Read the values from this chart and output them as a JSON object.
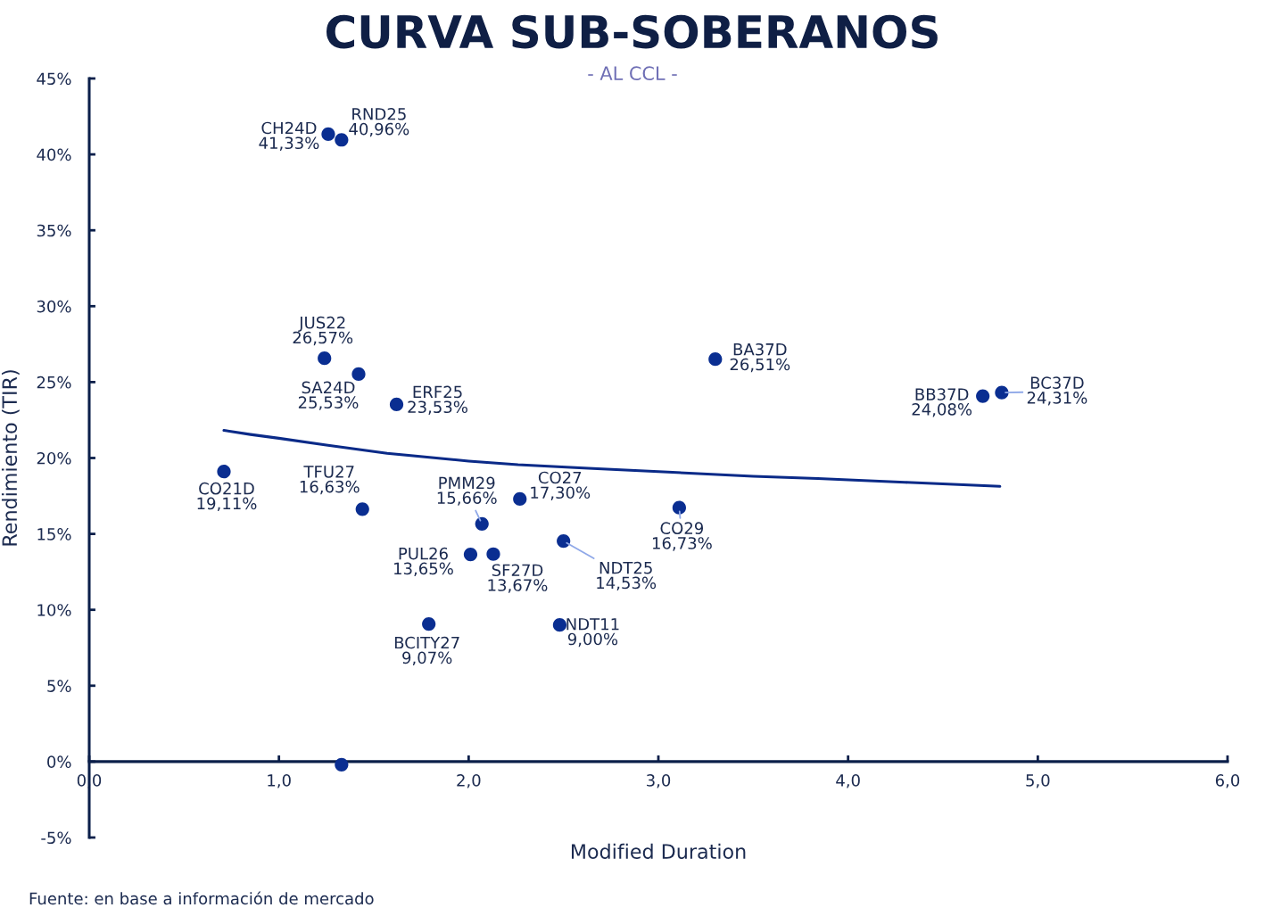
{
  "chart_data": {
    "type": "scatter",
    "title": "CURVA SUB-SOBERANOS",
    "subtitle": "- AL CCL -",
    "xlabel": "Modified Duration",
    "ylabel": "Rendimiento (TIR)",
    "annotations": [
      "Fuente: en base a información de mercado"
    ],
    "xlim": [
      0,
      6
    ],
    "ylim": [
      -5,
      45
    ],
    "xticks": [
      {
        "value": 0,
        "label": "0,0"
      },
      {
        "value": 1,
        "label": "1,0"
      },
      {
        "value": 2,
        "label": "2,0"
      },
      {
        "value": 3,
        "label": "3,0"
      },
      {
        "value": 4,
        "label": "4,0"
      },
      {
        "value": 5,
        "label": "5,0"
      },
      {
        "value": 6,
        "label": "6,0"
      }
    ],
    "yticks": [
      {
        "value": -5,
        "label": "-5%"
      },
      {
        "value": 0,
        "label": "0%"
      },
      {
        "value": 5,
        "label": "5%"
      },
      {
        "value": 10,
        "label": "10%"
      },
      {
        "value": 15,
        "label": "15%"
      },
      {
        "value": 20,
        "label": "20%"
      },
      {
        "value": 25,
        "label": "25%"
      },
      {
        "value": 30,
        "label": "30%"
      },
      {
        "value": 35,
        "label": "35%"
      },
      {
        "value": 40,
        "label": "40%"
      },
      {
        "value": 45,
        "label": "45%"
      }
    ],
    "grid": false,
    "series": [
      {
        "color": "#0a2e91",
        "marker": "circle",
        "x": [
          1.26,
          1.33,
          1.24,
          1.42,
          1.62,
          0.71,
          1.44,
          2.07,
          2.27,
          2.01,
          2.13,
          2.5,
          3.11,
          1.79,
          2.48,
          3.3,
          4.71,
          4.81,
          1.33
        ],
        "values": [
          41.33,
          40.96,
          26.57,
          25.53,
          23.53,
          19.11,
          16.63,
          15.66,
          17.3,
          13.65,
          13.67,
          14.53,
          16.73,
          9.07,
          9.0,
          26.51,
          24.08,
          24.31,
          -0.2
        ],
        "value_labels": [
          "CH24D\n41,33%",
          "RND25\n40,96%",
          "JUS22\n26,57%",
          "SA24D\n25,53%",
          "ERF25\n23,53%",
          "CO21D\n19,11%",
          "TFU27\n16,63%",
          "PMM29\n15,66%",
          "CO27\n17,30%",
          "PUL26\n13,65%",
          "SF27D\n13,67%",
          "NDT25\n14,53%",
          "CO29\n16,73%",
          "BCITY27\n9,07%",
          "NDT11\n9,00%",
          "BA37D\n26,51%",
          "BB37D\n24,08%",
          "BC37D\n24,31%",
          null
        ]
      },
      {
        "type": "line",
        "color": "#0a2a88",
        "x": [
          0.71,
          0.85,
          1.0,
          1.25,
          1.57,
          2.0,
          2.26,
          2.63,
          3.05,
          3.5,
          3.84,
          4.3,
          4.8
        ],
        "values": [
          21.82,
          21.55,
          21.3,
          20.85,
          20.31,
          19.8,
          19.56,
          19.33,
          19.07,
          18.8,
          18.65,
          18.4,
          18.13
        ]
      }
    ]
  }
}
